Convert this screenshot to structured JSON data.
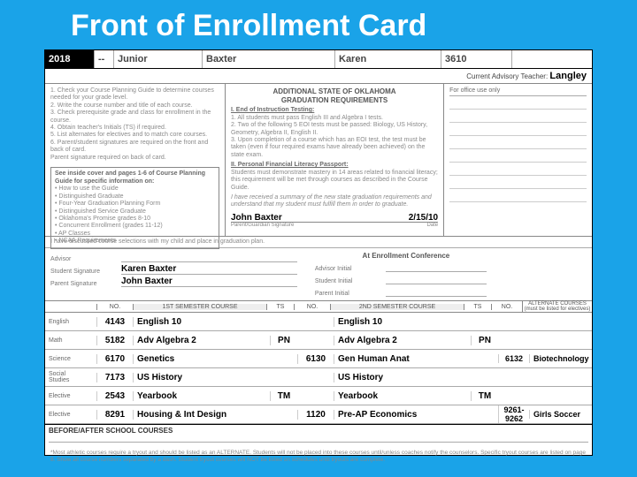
{
  "title": "Front of Enrollment Card",
  "header": {
    "year": "2018",
    "dash": "--",
    "grade": "Junior",
    "last": "Baxter",
    "first": "Karen",
    "id": "3610"
  },
  "advisor_label": "Current Advisory Teacher:",
  "advisor_name": "Langley",
  "colA": {
    "steps": "1. Check your Course Planning Guide to determine courses needed for your grade level.\n2. Write the course number and title of each course.\n3. Check prerequisite grade and class for enrollment in the course.\n4. Obtain teacher's Initials (TS) if required.\n5. List alternates for electives and to match core courses.\n6. Parent/student signatures are required on the front and back of card.\n    Parent signature required on back of card.",
    "box_head": "See inside cover and pages 1-6 of Course Planning Guide for specific information on:",
    "box_items": "• How to use the Guide\n• Distinguished Graduate\n• Four-Year Graduation Planning Form\n• Distinguished Service Graduate\n• Oklahoma's Promise grades 8-10\n• Concurrent Enrollment (grades 11-12)\n• AP Classes\n• NCAA Requirements"
  },
  "colB": {
    "state_title": "ADDITIONAL STATE OF OKLAHOMA\nGRADUATION REQUIREMENTS",
    "sec1_title": "I.  End of Instruction Testing:",
    "sec1_body": "1. All students must pass English III and Algebra I tests.\n2. Two of the following 5 EOI tests must be passed: Biology, US History, Geometry, Algebra II, English II.\n3. Upon completion of a course which has an EOI test, the test must be taken (even if four required exams have already been achieved) on the state exam.",
    "sec2_title": "II. Personal Financial Literacy Passport:",
    "sec2_body": "Students must demonstrate mastery in 14 areas related to financial literacy; this requirement will be met through courses as described in the Course Guide.",
    "ack": "I have received a summary of the new state graduation requirements and understand that my student must fulfill them in order to graduate.",
    "parent_sig": "John  Baxter",
    "parent_date": "2/15/10",
    "parent_sig_lbl": "Parent/Guardian Signature",
    "parent_date_lbl": "Date"
  },
  "colC": {
    "office": "For office use only",
    "lines": 8
  },
  "discussed": "I have discussed course selections with my child and place in graduation plan.",
  "sigs": {
    "advisor_lbl": "Advisor",
    "student_lbl": "Student Signature",
    "parent_lbl": "Parent Signature",
    "student_val": "Karen Baxter",
    "parent_val": "John  Baxter",
    "conf_title": "At Enrollment Conference",
    "ai_lbl": "Advisor Initial",
    "si_lbl": "Student Initial",
    "pi_lbl": "Parent Initial"
  },
  "sched_head": {
    "no": "NO.",
    "sem1": "1ST SEMESTER COURSE",
    "ts": "TS",
    "sem2": "2ND SEMESTER COURSE",
    "alt_no": "NO.",
    "alt": "ALTERNATE COURSES\n(must be listed for electives)"
  },
  "rows": [
    {
      "subj": "English",
      "no1": "4143",
      "s1": "English 10",
      "ts1": "",
      "no2": "",
      "s2": "English 10",
      "ts2": "",
      "altn": "",
      "alt": ""
    },
    {
      "subj": "Math",
      "no1": "5182",
      "s1": "Adv Algebra 2",
      "ts1": "PN",
      "no2": "",
      "s2": "Adv Algebra 2",
      "ts2": "PN",
      "altn": "",
      "alt": ""
    },
    {
      "subj": "Science",
      "no1": "6170",
      "s1": "Genetics",
      "ts1": "",
      "no2": "6130",
      "s2": "Gen Human Anat",
      "ts2": "",
      "altn": "6132",
      "alt": "Biotechnology"
    },
    {
      "subj": "Social\nStudies",
      "no1": "7173",
      "s1": "US History",
      "ts1": "",
      "no2": "",
      "s2": "US History",
      "ts2": "",
      "altn": "",
      "alt": ""
    },
    {
      "subj": "Elective",
      "no1": "2543",
      "s1": "Yearbook",
      "ts1": "TM",
      "no2": "",
      "s2": "Yearbook",
      "ts2": "TM",
      "altn": "",
      "alt": ""
    },
    {
      "subj": "Elective",
      "no1": "8291",
      "s1": "Housing & Int Design",
      "ts1": "",
      "no2": "1120",
      "s2": "Pre-AP Economics",
      "ts2": "",
      "altn": "9261-9262",
      "alt": "Girls Soccer"
    }
  ],
  "bas_title": "BEFORE/AFTER SCHOOL COURSES",
  "footnote": "*Most athletic courses require a tryout and should be listed as an ALTERNATE. Students will not be placed into these courses until/unless coaches notify the counselors. Specific tryout courses are listed on page 8. Show all course numbers separated by a dash. Student tryout courses will NOT be listed on schedules until tryouts are complete."
}
